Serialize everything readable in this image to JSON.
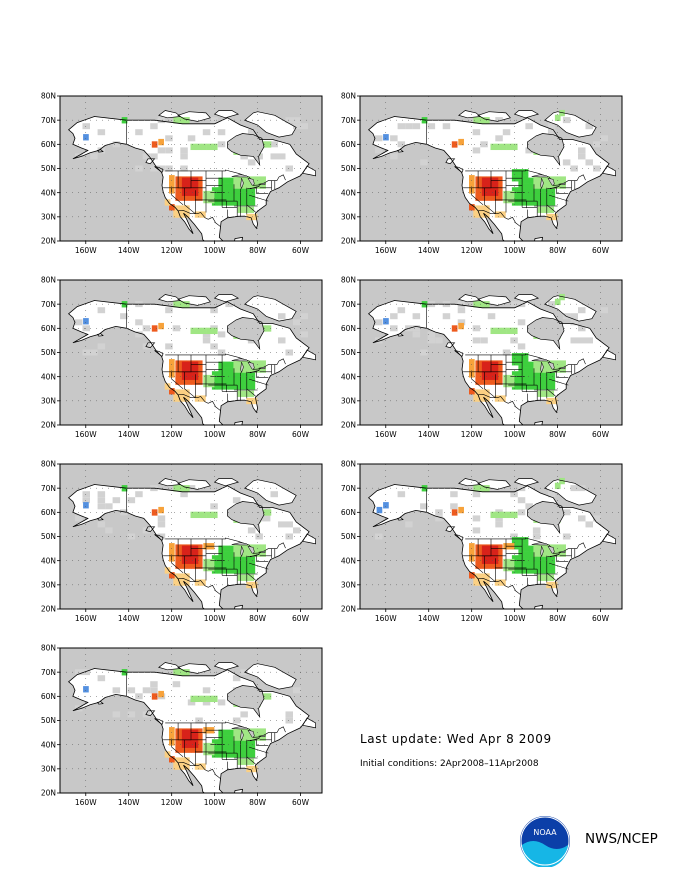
{
  "map": {
    "lat_labels": [
      "80N",
      "70N",
      "60N",
      "50N",
      "40N",
      "30N",
      "20N"
    ],
    "lon_labels": [
      "160W",
      "140W",
      "120W",
      "100W",
      "80W",
      "60W"
    ],
    "lat_range": [
      20,
      80
    ],
    "lon_range": [
      -172,
      -50
    ],
    "colors": {
      "ocean": "#c8c8c8",
      "land_blank": "#ffffff",
      "no_data": "#d2d2d2",
      "wet_light": "#a0e684",
      "wet": "#3ecf3e",
      "dry_light": "#fbd083",
      "dry": "#f7a23a",
      "dry_strong": "#ed5a1e",
      "dry_extreme": "#d8221a",
      "cold": "#5390e0",
      "coast": "#000000"
    }
  },
  "panel_count": 7,
  "footer": {
    "last_update": "Last update: Wed Apr 8 2009",
    "initial_conditions": "Initial conditions: 2Apr2008–11Apr2008",
    "organization": "NWS/NCEP",
    "logo_text": "NOAA",
    "logo_colors": {
      "blue": "#0b3fa8",
      "cyan": "#16b6e6"
    }
  }
}
